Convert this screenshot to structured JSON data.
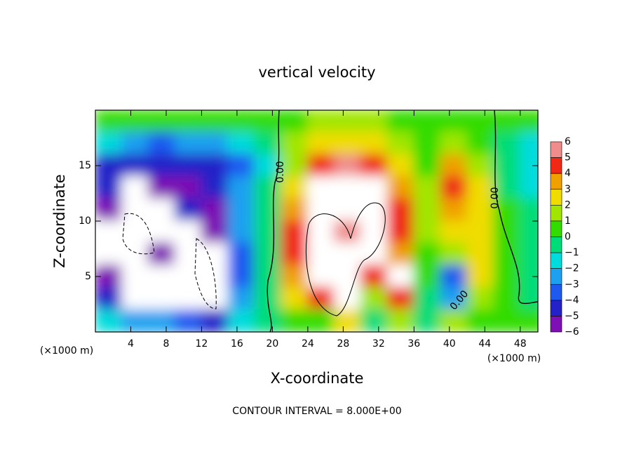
{
  "chart_data": {
    "type": "heatmap",
    "title": "vertical velocity",
    "x_label": "X-coordinate",
    "y_label": "Z-coordinate",
    "x_unit": "(×1000 m)",
    "x_unit_right": "(×1000 m)",
    "footer": "CONTOUR INTERVAL = 8.000E+00",
    "contour_labels": [
      "0.00",
      "0.00",
      "0.00"
    ],
    "xlim": [
      0,
      50
    ],
    "ylim": [
      0,
      20
    ],
    "xticks": [
      4,
      8,
      12,
      16,
      20,
      24,
      28,
      32,
      36,
      40,
      44,
      48
    ],
    "yticks": [
      5,
      10,
      15
    ],
    "x": [
      1.5,
      4.5,
      7.5,
      10.5,
      13.5,
      16.5,
      19.5,
      22.5,
      25.5,
      28.5,
      31.5,
      34.5,
      37.5,
      40.5,
      43.5,
      46.5,
      49.5
    ],
    "y": [
      19,
      17,
      15,
      13,
      11,
      9,
      7,
      5,
      3,
      1
    ],
    "values": [
      [
        0.5,
        0.5,
        0.5,
        0.5,
        0.5,
        0.5,
        0.5,
        0.5,
        1.5,
        1.5,
        1.5,
        0.5,
        0.5,
        0.5,
        0.5,
        0.5,
        0.5
      ],
      [
        -1.5,
        -2.5,
        -3.5,
        -3,
        -2.5,
        -1.5,
        -0.5,
        1.5,
        2.5,
        2.5,
        2.5,
        1.5,
        0.5,
        1.5,
        0.5,
        -0.5,
        -1.5
      ],
      [
        -4.5,
        -4.5,
        -4.5,
        -4.5,
        -4.5,
        -3.5,
        -1.5,
        1.5,
        4.5,
        5.5,
        4.5,
        2.5,
        0.5,
        3.5,
        1.5,
        -0.5,
        -1.5
      ],
      [
        -4.5,
        -8,
        -5.5,
        -5.5,
        -4.5,
        -2.5,
        -0.5,
        2.5,
        8,
        8,
        8,
        3.5,
        1.5,
        4.5,
        2.5,
        -0.5,
        -1.5
      ],
      [
        -5.5,
        -8,
        -8,
        -4.5,
        -5.5,
        -2.5,
        -0.5,
        3.5,
        8,
        8,
        8,
        4.5,
        1.5,
        3.5,
        2.5,
        0.5,
        -0.5
      ],
      [
        -8,
        -8,
        -8,
        -8,
        -5.5,
        -2.5,
        -0.5,
        4.5,
        8,
        5.5,
        8,
        4.5,
        1.5,
        2.5,
        2.5,
        0.5,
        -0.5
      ],
      [
        -8,
        -8,
        -5.5,
        -8,
        -8,
        -3.5,
        -0.5,
        4.5,
        8,
        8,
        8,
        3.5,
        0.5,
        1.5,
        2.5,
        0.5,
        -0.5
      ],
      [
        -5.5,
        -8,
        -8,
        -8,
        -8,
        -3.5,
        -0.5,
        3.5,
        8,
        8,
        4.5,
        8,
        0.5,
        -3.5,
        2.5,
        0.5,
        -0.5
      ],
      [
        -4.5,
        -8,
        -8,
        -8,
        -8,
        -2.5,
        -0.5,
        2.5,
        4.5,
        8,
        1.5,
        4.5,
        -0.5,
        -2.5,
        1.5,
        0.5,
        -0.5
      ],
      [
        -1.5,
        -2.5,
        -2.5,
        -3.5,
        -4.5,
        -1.5,
        -0.5,
        0.5,
        0.5,
        2.5,
        -0.5,
        1.5,
        -0.5,
        1.5,
        0.5,
        0.5,
        0.5
      ]
    ],
    "overflow_color": "#ffffff",
    "levels": [
      6,
      5,
      4,
      3,
      2,
      1,
      0,
      {
        "value": -1,
        "label": "−1"
      },
      {
        "value": -2,
        "label": "−2"
      },
      {
        "value": -3,
        "label": "−3"
      },
      {
        "value": -4,
        "label": "−4"
      },
      {
        "value": -5,
        "label": "−5"
      },
      {
        "value": -6,
        "label": "−6"
      }
    ],
    "colors": [
      "#f08c8c",
      "#f02814",
      "#f0a000",
      "#f0dc00",
      "#a0e600",
      "#32dc00",
      "#00dc78",
      "#00dcdc",
      "#1ea0f0",
      "#1e5af0",
      "#2222c8",
      "#7d0fb4"
    ]
  }
}
